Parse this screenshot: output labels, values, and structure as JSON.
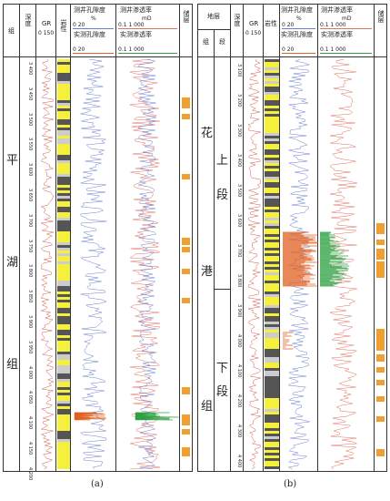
{
  "panel_a": {
    "headers": {
      "group": "组",
      "depth": "深度",
      "gr": "GR",
      "gr_range": "0 150",
      "lith": "岩性",
      "por_log": "测井孔隙度",
      "por_unit": "%",
      "por_log_range": "0 20",
      "por_core": "实测孔隙度",
      "por_core_range": "0 20",
      "perm_log": "测井渗透率",
      "perm_unit": "mD",
      "perm_log_range": "0.1 1 000",
      "perm_core": "实测渗透率",
      "perm_core_range": "0.1 1 000",
      "reservoir": "储层"
    },
    "formation_chars": [
      "平",
      "湖",
      "组"
    ],
    "depths": [
      "3 400",
      "3 450",
      "3 500",
      "3 550",
      "3 600",
      "3 650",
      "3 700",
      "3 750",
      "3 800",
      "3 850",
      "3 900",
      "3 950",
      "4 000",
      "4 050",
      "4 100",
      "4 150",
      "4 200"
    ]
  },
  "panel_b": {
    "headers": {
      "layer": "地层",
      "group": "组",
      "section": "段",
      "depth": "深度",
      "gr": "GR",
      "gr_range": "0 150",
      "lith": "岩性",
      "por_log": "测井孔隙度",
      "por_unit": "%",
      "por_log_range": "0 20",
      "por_core": "实测孔隙度",
      "por_core_range": "0 20",
      "perm_log": "测井渗透率",
      "perm_unit": "mD",
      "perm_log_range": "0.1 1 000",
      "perm_core": "实测渗透率",
      "perm_core_range": "0.1 1 000",
      "reservoir": "储层"
    },
    "formation_chars": [
      "花",
      "港",
      "组"
    ],
    "upper_section": [
      "上",
      "段"
    ],
    "lower_section": [
      "下",
      "段"
    ],
    "depths": [
      "3 100",
      "3 200",
      "3 300",
      "3 400",
      "3 500",
      "3 600",
      "3 700",
      "3 800",
      "3 900",
      "4 000",
      "4 100",
      "4 200",
      "4 300",
      "4 400"
    ]
  },
  "captions": {
    "a": "(a)",
    "b": "(b)"
  },
  "colors": {
    "gr_curve": "#d45a4a",
    "porosity_log": "#6a7fd0",
    "porosity_core": "#e06020",
    "permeability_log": "#e07060",
    "permeability_core": "#2da040",
    "reservoir": "#f0a030",
    "sand": "#f4f03c"
  }
}
